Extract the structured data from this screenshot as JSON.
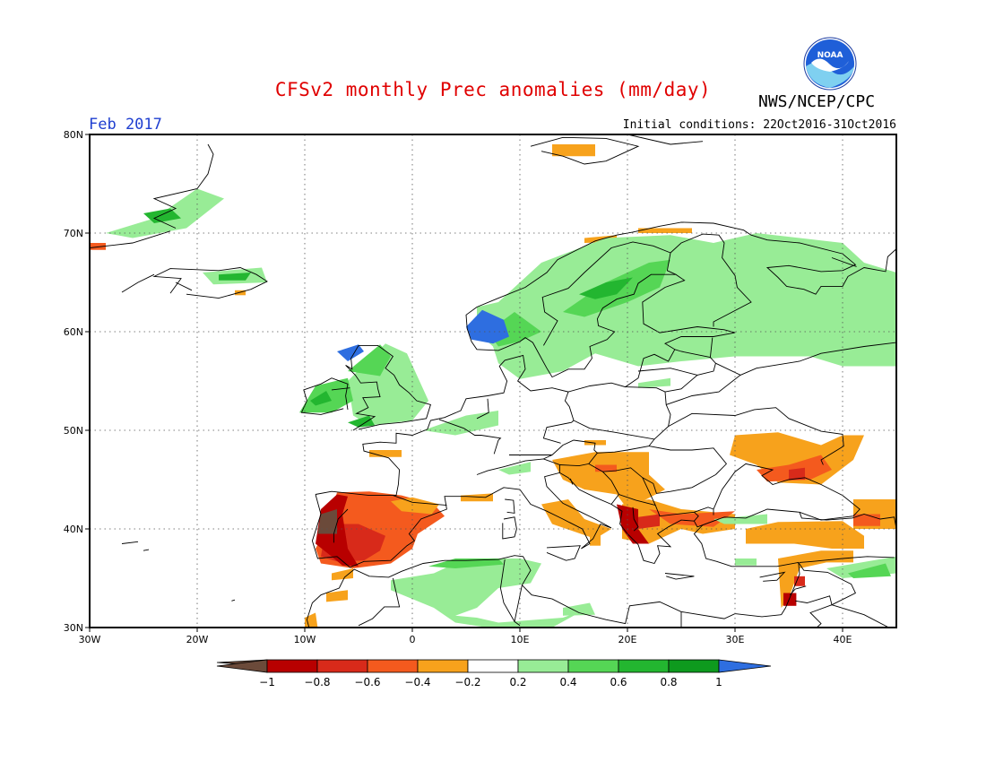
{
  "header": {
    "title": "CFSv2 monthly Prec anomalies (mm/day)",
    "agency": "NWS/NCEP/CPC",
    "period": "Feb 2017",
    "initial_conditions": "Initial conditions: 22Oct2016-31Oct2016",
    "logo_text": "NOAA"
  },
  "map": {
    "projection": "lat-lon",
    "lon_range": [
      -30,
      45
    ],
    "lat_range": [
      30,
      80
    ],
    "lon_ticks": [
      "30W",
      "20W",
      "10W",
      "0",
      "10E",
      "20E",
      "30E",
      "40E"
    ],
    "lat_ticks": [
      "80N",
      "70N",
      "60N",
      "50N",
      "40N",
      "30N"
    ],
    "grid": "dotted"
  },
  "colorbar": {
    "tick_labels": [
      "-1",
      "-0.8",
      "-0.6",
      "-0.4",
      "-0.2",
      "0.2",
      "0.4",
      "0.6",
      "0.8",
      "1"
    ],
    "colors": {
      "lt_m1": "#6b4a3a",
      "m1_m08": "#b80000",
      "m08_m06": "#d82a1a",
      "m06_m04": "#f45a1e",
      "m04_m02": "#f7a21c",
      "m02_02": "#ffffff",
      "p02_04": "#98ec96",
      "p04_06": "#55d655",
      "p06_08": "#23b630",
      "p08_1": "#0e9a1e",
      "gt_1": "#2e6ee0"
    }
  }
}
